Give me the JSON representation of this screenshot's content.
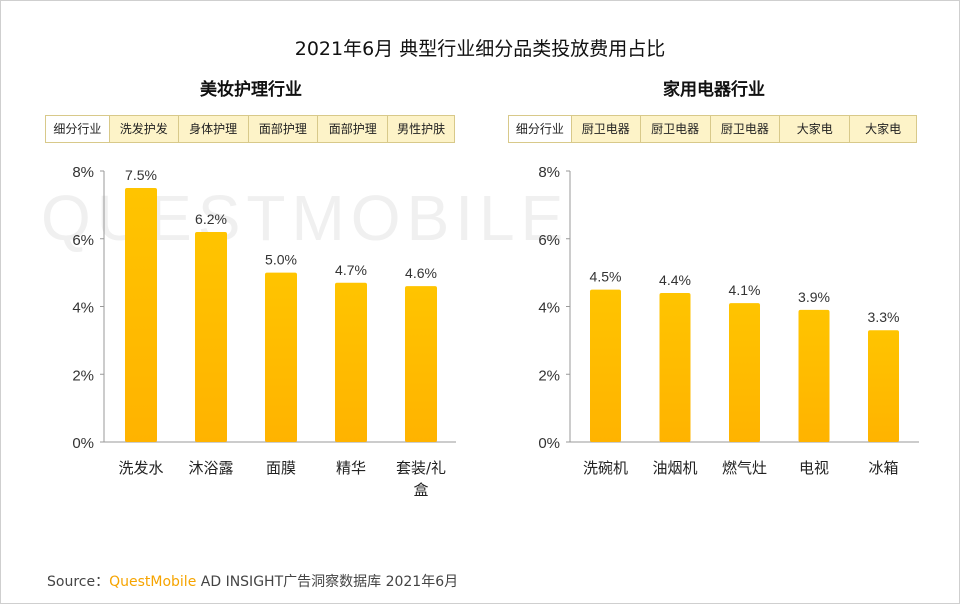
{
  "title": "2021年6月 典型行业细分品类投放费用占比",
  "watermark": "QUESTMOBILE",
  "source": {
    "prefix": "Source：",
    "brand": "QuestMobile",
    "rest": " AD INSIGHT广告洞察数据库 2021年6月"
  },
  "colors": {
    "bar_top": "#ffc400",
    "bar_bottom": "#ffb300",
    "axis": "#999999",
    "table_fill": "#fdf3c8",
    "table_border": "#d8c98a"
  },
  "panels": [
    {
      "subtitle": "美妆护理行业",
      "table_header": "细分行业",
      "table_cells": [
        "洗发护发",
        "身体护理",
        "面部护理",
        "面部护理",
        "男性护肤"
      ]
    },
    {
      "subtitle": "家用电器行业",
      "table_header": "细分行业",
      "table_cells": [
        "厨卫电器",
        "厨卫电器",
        "厨卫电器",
        "大家电",
        "大家电"
      ]
    }
  ],
  "chart_data": [
    {
      "type": "bar",
      "title": "美妆护理行业",
      "categories": [
        "洗发水",
        "沐浴露",
        "面膜",
        "精华",
        "套装/礼盒"
      ],
      "values": [
        7.5,
        6.2,
        5.0,
        4.7,
        4.6
      ],
      "value_labels": [
        "7.5%",
        "6.2%",
        "5.0%",
        "4.7%",
        "4.6%"
      ],
      "unit": "%",
      "ylim": [
        0,
        8
      ],
      "yticks": [
        0,
        2,
        4,
        6,
        8
      ],
      "ytick_labels": [
        "0%",
        "2%",
        "4%",
        "6%",
        "8%"
      ],
      "grid": false,
      "legend": "none"
    },
    {
      "type": "bar",
      "title": "家用电器行业",
      "categories": [
        "洗碗机",
        "油烟机",
        "燃气灶",
        "电视",
        "冰箱"
      ],
      "values": [
        4.5,
        4.4,
        4.1,
        3.9,
        3.3
      ],
      "value_labels": [
        "4.5%",
        "4.4%",
        "4.1%",
        "3.9%",
        "3.3%"
      ],
      "unit": "%",
      "ylim": [
        0,
        8
      ],
      "yticks": [
        0,
        2,
        4,
        6,
        8
      ],
      "ytick_labels": [
        "0%",
        "2%",
        "4%",
        "6%",
        "8%"
      ],
      "grid": false,
      "legend": "none"
    }
  ]
}
